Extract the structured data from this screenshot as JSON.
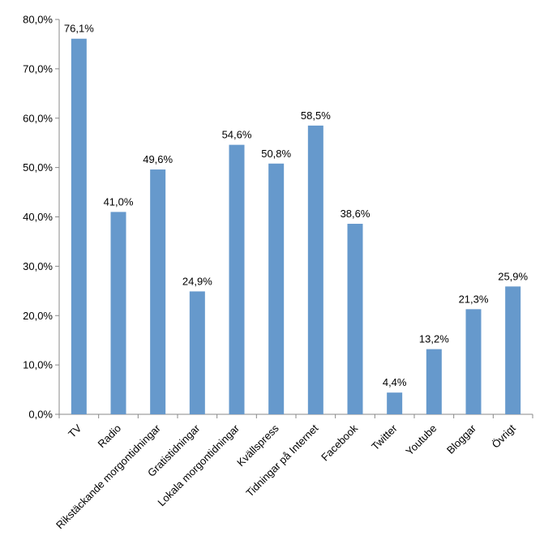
{
  "chart_data": {
    "type": "bar",
    "categories": [
      "TV",
      "Radio",
      "Rikstäckande morgontidningar",
      "Gratistidningar",
      "Lokala morgontidningar",
      "Kvällspress",
      "Tidningar på Internet",
      "Facebook",
      "Twitter",
      "Youtube",
      "Bloggar",
      "Övrigt"
    ],
    "values": [
      76.1,
      41.0,
      49.6,
      24.9,
      54.6,
      50.8,
      58.5,
      38.6,
      4.4,
      13.2,
      21.3,
      25.9
    ],
    "value_labels": [
      "76,1%",
      "41,0%",
      "49,6%",
      "24,9%",
      "54,6%",
      "50,8%",
      "58,5%",
      "38,6%",
      "4,4%",
      "13,2%",
      "21,3%",
      "25,9%"
    ],
    "y_ticks": [
      0,
      10,
      20,
      30,
      40,
      50,
      60,
      70,
      80
    ],
    "y_tick_labels": [
      "0,0%",
      "10,0%",
      "20,0%",
      "30,0%",
      "40,0%",
      "50,0%",
      "60,0%",
      "70,0%",
      "80,0%"
    ],
    "ylim": [
      0,
      80
    ],
    "grid": false,
    "legend": "none",
    "title": "",
    "xlabel": "",
    "ylabel": "",
    "bar_color": "#6699cc",
    "axis_color": "#888888"
  }
}
